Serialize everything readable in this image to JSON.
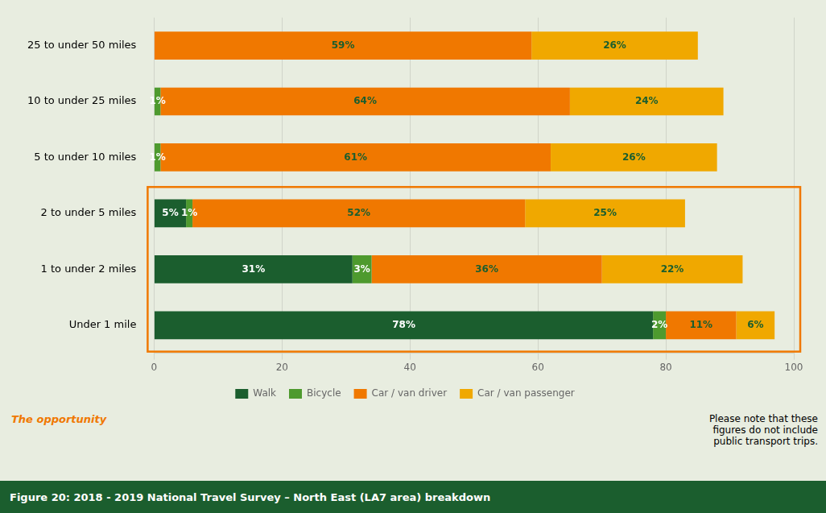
{
  "chart_data": {
    "type": "bar",
    "orientation": "horizontal",
    "stacked": true,
    "categories": [
      "Under 1 mile",
      "1 to under 2 miles",
      "2 to under 5 miles",
      "5 to under 10 miles",
      "10 to under 25 miles",
      "25 to under 50 miles"
    ],
    "series": [
      {
        "name": "Walk",
        "color": "#1b5e2e",
        "values": [
          78,
          31,
          5,
          0,
          0,
          0
        ],
        "value_labels": [
          "78%",
          "31%",
          "5%",
          null,
          null,
          null
        ]
      },
      {
        "name": "Bicycle",
        "color": "#4e9a2e",
        "values": [
          2,
          3,
          1,
          1,
          1,
          0
        ],
        "value_labels": [
          "2%",
          "3%",
          "1%",
          "1%",
          "1%",
          null
        ]
      },
      {
        "name": "Car / van driver",
        "color": "#f07800",
        "values": [
          11,
          36,
          52,
          61,
          64,
          59
        ],
        "value_labels": [
          "11%",
          "36%",
          "52%",
          "61%",
          "64%",
          "59%"
        ]
      },
      {
        "name": "Car / van passenger",
        "color": "#f0a800",
        "values": [
          6,
          22,
          25,
          26,
          24,
          26
        ],
        "value_labels": [
          "6%",
          "22%",
          "25%",
          "26%",
          "24%",
          "26%"
        ]
      }
    ],
    "xlim": [
      0,
      100
    ],
    "xticks": [
      0,
      20,
      40,
      60,
      80,
      100
    ],
    "grid": true,
    "legend": "bottom",
    "data_labels": true,
    "annotations": [
      {
        "text": "The opportunity",
        "color": "#f07800"
      },
      {
        "text": "Please note that these\nfigures do not include\npublic transport trips."
      },
      {
        "text": "Figure 20: 2018 - 2019 National Travel Survey – North East (LA7 area) breakdown"
      }
    ]
  }
}
